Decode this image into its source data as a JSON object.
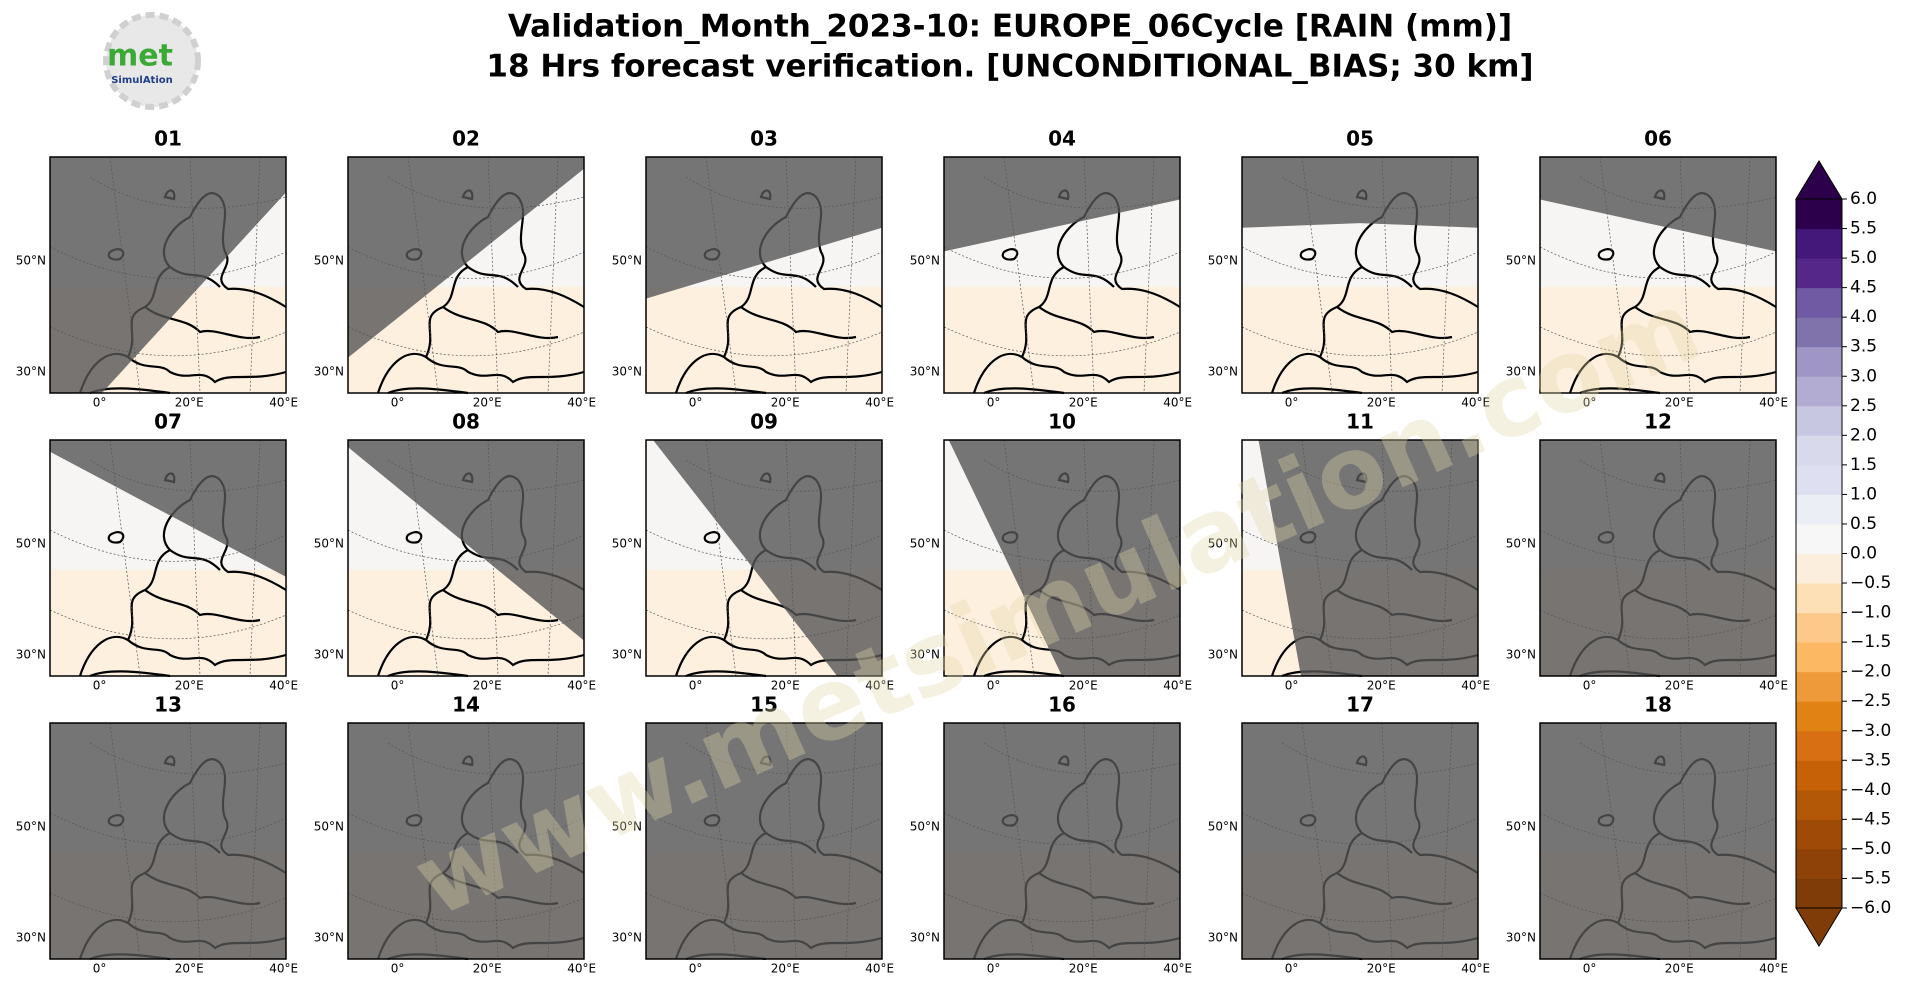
{
  "logo": {
    "name": "met",
    "sub": "SimulAtion"
  },
  "title": [
    "Validation_Month_2023-10: EUROPE_06Cycle [RAIN (mm)]",
    "18 Hrs forecast verification. [UNCONDITIONAL_BIAS; 30 km]"
  ],
  "panels": [
    "01",
    "02",
    "03",
    "04",
    "05",
    "06",
    "07",
    "08",
    "09",
    "10",
    "11",
    "12",
    "13",
    "14",
    "15",
    "16",
    "17",
    "18"
  ],
  "lat_labels": [
    "50°N",
    "30°N"
  ],
  "lon_labels": [
    "0°",
    "20°E",
    "40°E"
  ],
  "watermark": "www.metsimulation.com",
  "colorbar": {
    "ylim": [
      -6,
      6
    ],
    "ticks": [
      {
        "value": 6,
        "label": "6.0"
      },
      {
        "value": 5.5,
        "label": "5.5"
      },
      {
        "value": 5,
        "label": "5.0"
      },
      {
        "value": 4.5,
        "label": "4.5"
      },
      {
        "value": 4,
        "label": "4.0"
      },
      {
        "value": 3.5,
        "label": "3.5"
      },
      {
        "value": 3,
        "label": "3.0"
      },
      {
        "value": 2.5,
        "label": "2.5"
      },
      {
        "value": 2,
        "label": "2.0"
      },
      {
        "value": 1.5,
        "label": "1.5"
      },
      {
        "value": 1,
        "label": "1.0"
      },
      {
        "value": 0.5,
        "label": "0.5"
      },
      {
        "value": 0,
        "label": "0.0"
      },
      {
        "value": -0.5,
        "label": "−0.5"
      },
      {
        "value": -1,
        "label": "−1.0"
      },
      {
        "value": -1.5,
        "label": "−1.5"
      },
      {
        "value": -2,
        "label": "−2.0"
      },
      {
        "value": -2.5,
        "label": "−2.5"
      },
      {
        "value": -3,
        "label": "−3.0"
      },
      {
        "value": -3.5,
        "label": "−3.5"
      },
      {
        "value": -4,
        "label": "−4.0"
      },
      {
        "value": -4.5,
        "label": "−4.5"
      },
      {
        "value": -5,
        "label": "−5.0"
      },
      {
        "value": -5.5,
        "label": "−5.5"
      },
      {
        "value": -6,
        "label": "−6.0"
      }
    ],
    "colors": [
      "#7f3b08",
      "#8f4208",
      "#a04a07",
      "#b35806",
      "#c66108",
      "#d86f12",
      "#e08214",
      "#ef9a3a",
      "#fdb863",
      "#fdc98a",
      "#fee0b6",
      "#fbeedd",
      "#f7f7f7",
      "#eceef5",
      "#dedff0",
      "#d8daeb",
      "#c8c7e2",
      "#b2abd2",
      "#9f96c6",
      "#8073ac",
      "#6f5aa3",
      "#542788",
      "#44177a",
      "#2d004b"
    ]
  }
}
